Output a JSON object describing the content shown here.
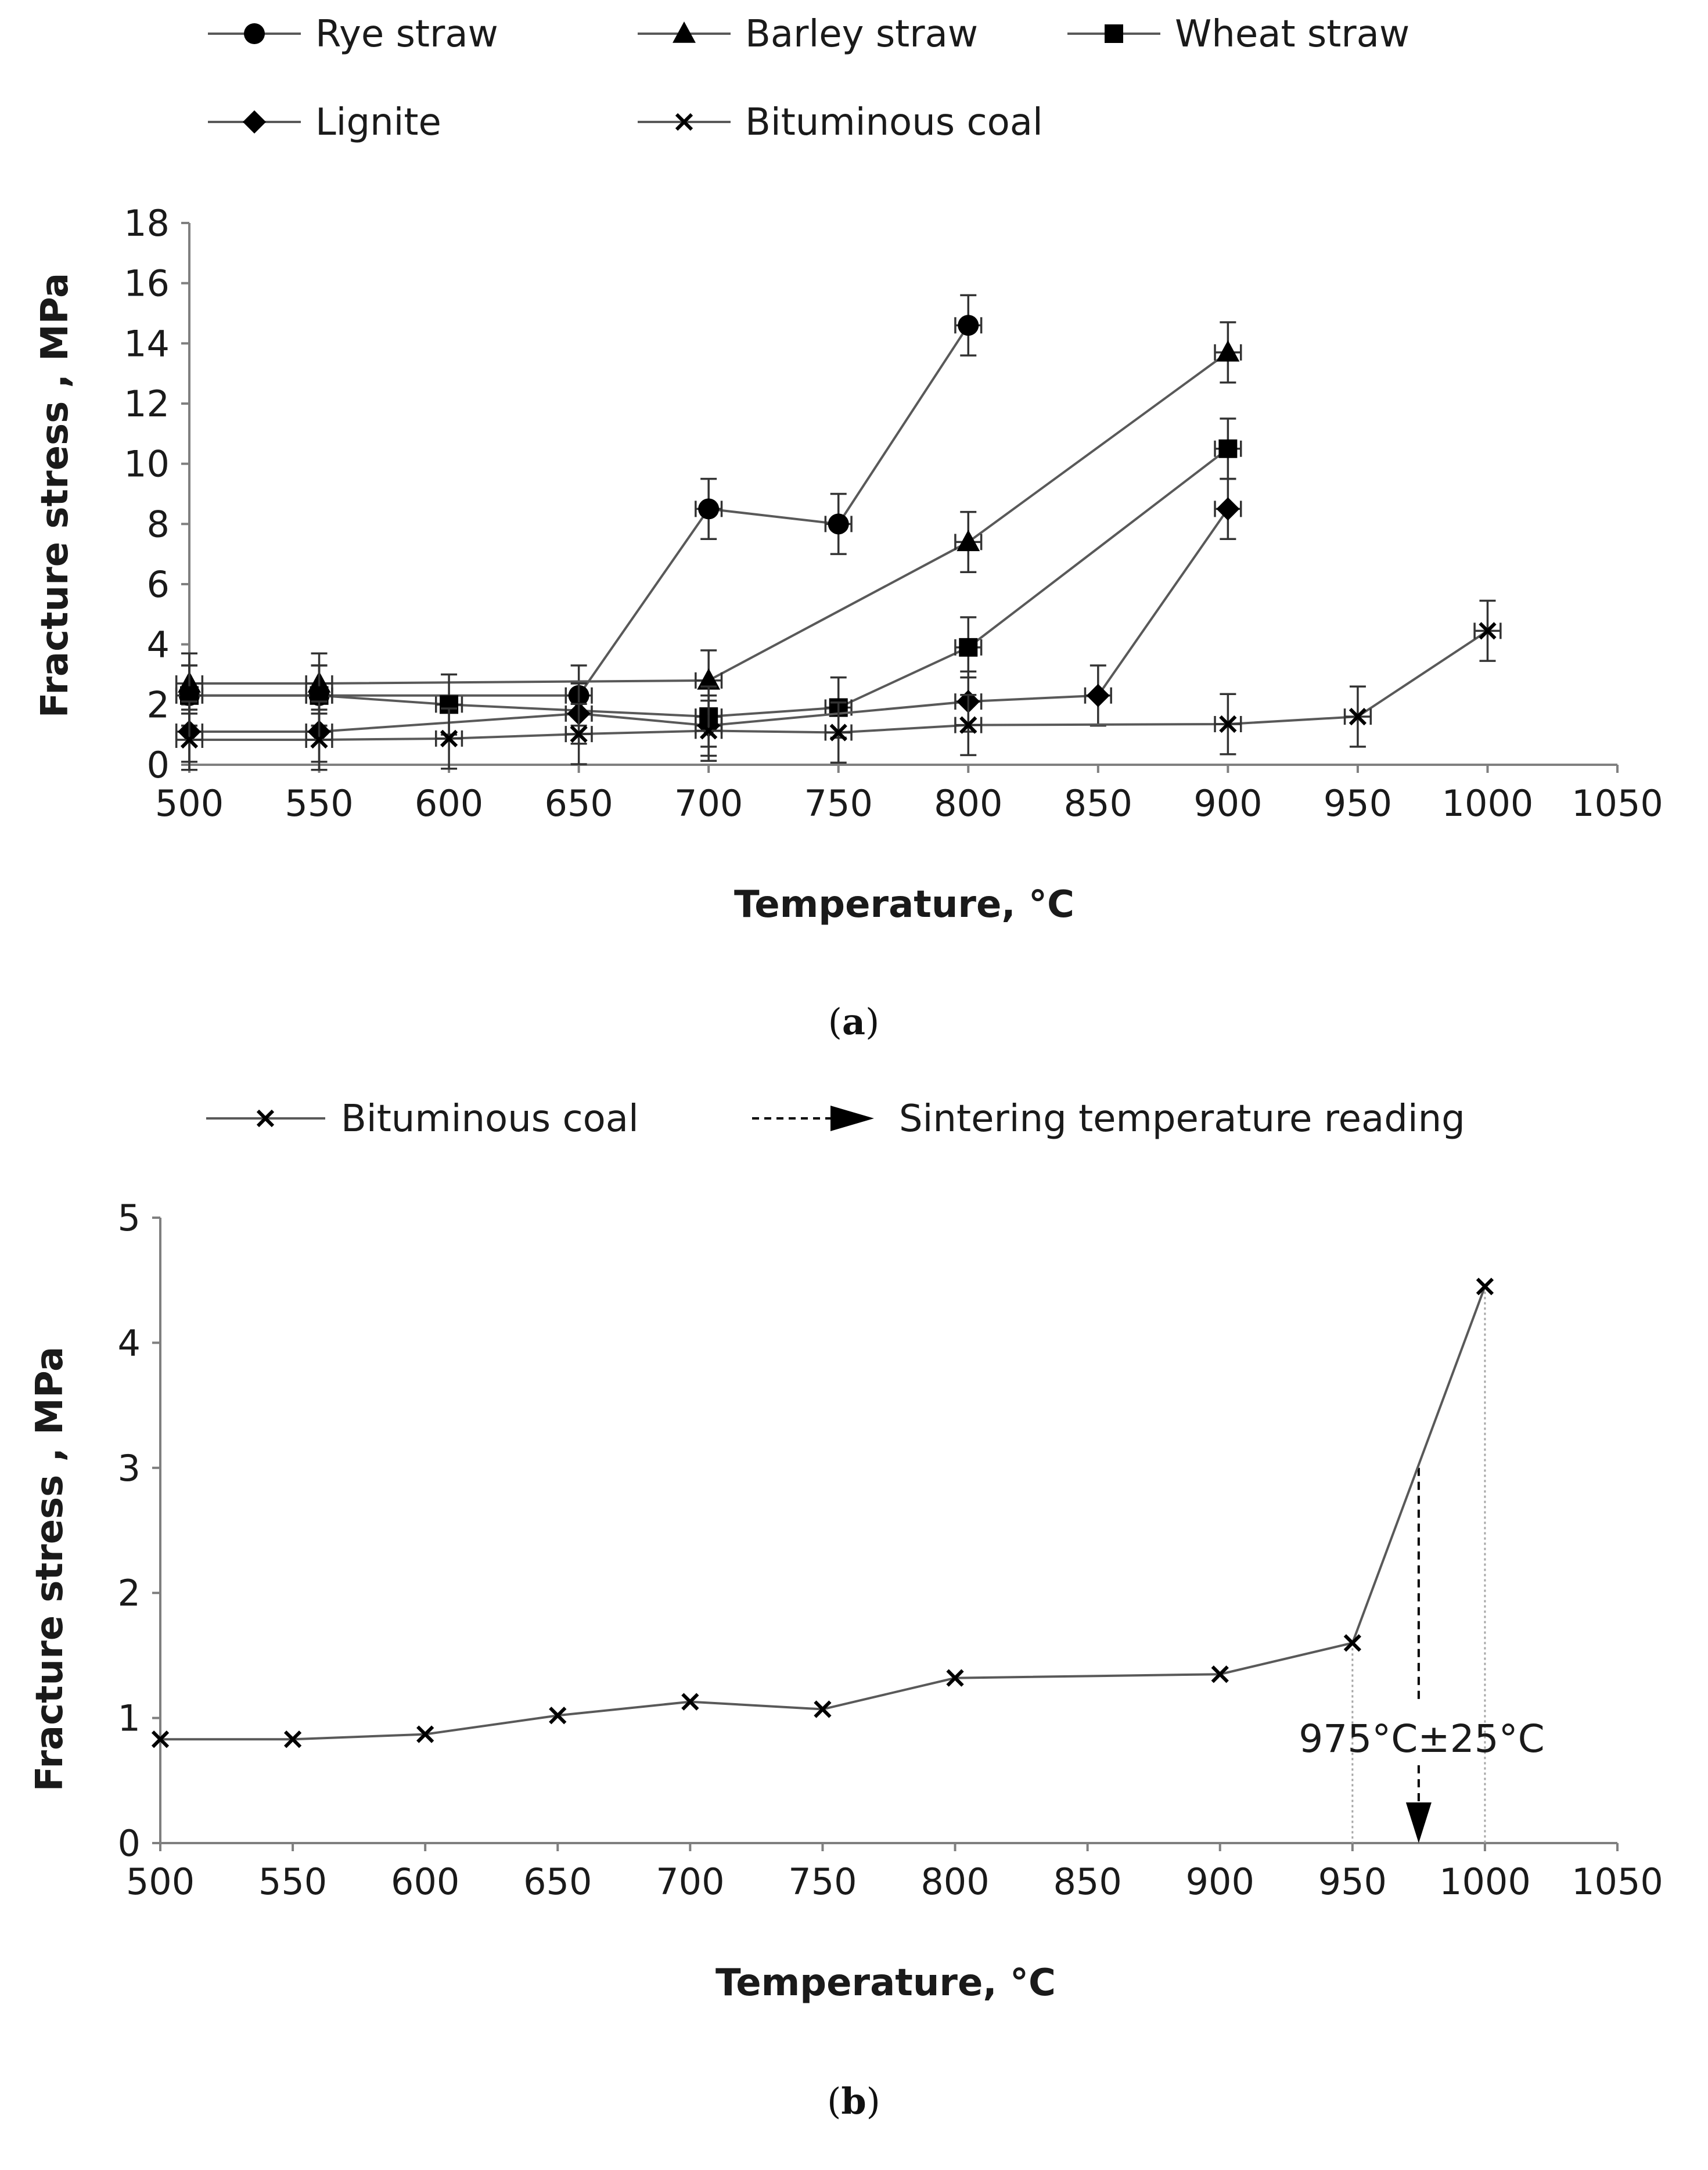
{
  "chart_data": [
    {
      "panel": "a",
      "caption_label": "a",
      "type": "line",
      "xlabel": "Temperature, °C",
      "ylabel": "Fracture stress , MPa",
      "xlim": [
        500,
        1050
      ],
      "ylim": [
        0,
        18
      ],
      "xticks": [
        "500",
        "550",
        "600",
        "650",
        "700",
        "750",
        "800",
        "850",
        "900",
        "950",
        "1000",
        "1050"
      ],
      "yticks": [
        "0",
        "2",
        "4",
        "6",
        "8",
        "10",
        "12",
        "14",
        "16",
        "18"
      ],
      "error_bars": {
        "x": 5,
        "y": 1.0
      },
      "series": [
        {
          "name": "Rye straw",
          "marker": "circle",
          "x": [
            500,
            550,
            650,
            700,
            750,
            800
          ],
          "y": [
            2.3,
            2.3,
            2.3,
            8.5,
            8.0,
            14.6
          ]
        },
        {
          "name": "Barley straw",
          "marker": "triangle",
          "x": [
            500,
            550,
            700,
            800,
            900
          ],
          "y": [
            2.7,
            2.7,
            2.8,
            7.4,
            13.7
          ]
        },
        {
          "name": "Wheat straw",
          "marker": "square",
          "x": [
            500,
            550,
            600,
            700,
            750,
            800,
            900
          ],
          "y": [
            2.3,
            2.3,
            2.0,
            1.6,
            1.9,
            3.9,
            10.5
          ]
        },
        {
          "name": "Lignite",
          "marker": "diamond",
          "x": [
            500,
            550,
            650,
            700,
            800,
            850,
            900
          ],
          "y": [
            1.1,
            1.1,
            1.7,
            1.3,
            2.1,
            2.3,
            8.5
          ]
        },
        {
          "name": "Bituminous coal",
          "marker": "cross",
          "x": [
            500,
            550,
            600,
            650,
            700,
            750,
            800,
            900,
            950,
            1000
          ],
          "y": [
            0.83,
            0.83,
            0.87,
            1.02,
            1.13,
            1.07,
            1.32,
            1.35,
            1.6,
            4.45
          ]
        }
      ]
    },
    {
      "panel": "b",
      "caption_label": "b",
      "type": "line",
      "xlabel": "Temperature, °C",
      "ylabel": "Fracture stress , MPa",
      "xlim": [
        500,
        1050
      ],
      "ylim": [
        0,
        5
      ],
      "xticks": [
        "500",
        "550",
        "600",
        "650",
        "700",
        "750",
        "800",
        "850",
        "900",
        "950",
        "1000",
        "1050"
      ],
      "yticks": [
        "0",
        "1",
        "2",
        "3",
        "4",
        "5"
      ],
      "series": [
        {
          "name": "Bituminous coal",
          "marker": "cross",
          "x": [
            500,
            550,
            600,
            650,
            700,
            750,
            800,
            900,
            950,
            1000
          ],
          "y": [
            0.83,
            0.83,
            0.87,
            1.02,
            1.13,
            1.07,
            1.32,
            1.35,
            1.6,
            4.45
          ]
        }
      ],
      "sintering": {
        "legend_label": "Sintering temperature reading",
        "annotation": "975°C±25°C",
        "x": 975,
        "y_start": 3.0,
        "y_end": 0,
        "bounds_x": [
          950,
          1000
        ]
      }
    }
  ]
}
